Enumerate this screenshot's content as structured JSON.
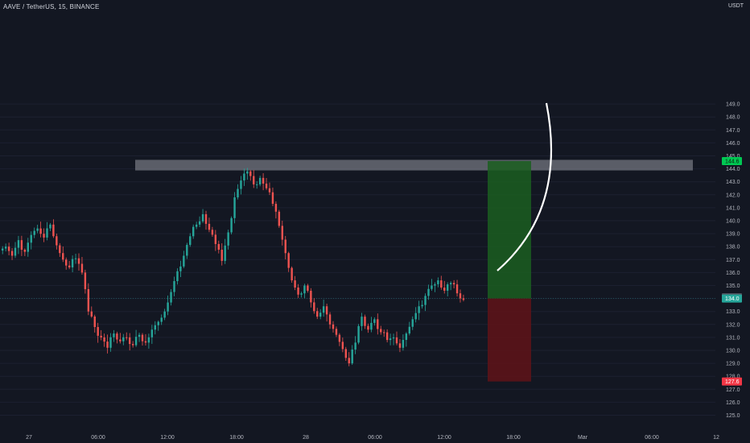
{
  "header": {
    "symbol_title": "AAVE / TetherUS, 15, BINANCE",
    "currency": "USDT"
  },
  "colors": {
    "background": "#131722",
    "up": "#26a69a",
    "down": "#ef5350",
    "target_zone": "#1b5e20",
    "stop_zone": "#5c1318",
    "resistance_zone": "#9598a1",
    "target_tag": "#00c853",
    "stop_tag": "#f23645",
    "current_tag": "#26a69a",
    "last_close_tag": "#4c525e"
  },
  "chart_data": {
    "type": "candlestick",
    "symbol": "AAVE / TetherUS",
    "interval": "15",
    "exchange": "BINANCE",
    "y_ticks": [
      125.0,
      126.0,
      127.0,
      128.0,
      129.0,
      130.0,
      131.0,
      132.0,
      133.0,
      134.0,
      135.0,
      136.0,
      137.0,
      138.0,
      139.0,
      140.0,
      141.0,
      142.0,
      143.0,
      144.0,
      145.0,
      146.0,
      147.0,
      148.0,
      149.0
    ],
    "y_tick_labels": [
      "125.0",
      "126.0",
      "127.0",
      "128.0",
      "129.0",
      "130.0",
      "131.0",
      "132.0",
      "133.0",
      "134.0",
      "135.0",
      "136.0",
      "137.0",
      "138.0",
      "139.0",
      "140.0",
      "141.0",
      "142.0",
      "143.0",
      "144.0",
      "145.0",
      "146.0",
      "147.0",
      "148.0",
      "149.0"
    ],
    "ylim": [
      124.3,
      150.2
    ],
    "x_tick_labels": [
      "27",
      "06:00",
      "12:00",
      "18:00",
      "28",
      "06:00",
      "12:00",
      "18:00",
      "Mar",
      "06:00",
      "12"
    ],
    "close_path": [
      138.0,
      137.3,
      138.5,
      137.6,
      138.9,
      139.4,
      138.7,
      139.7,
      138.1,
      137.0,
      136.4,
      137.1,
      136.0,
      133.0,
      131.8,
      131.0,
      130.2,
      131.3,
      130.7,
      131.0,
      130.4,
      131.2,
      130.6,
      131.6,
      132.2,
      133.0,
      134.5,
      136.1,
      137.3,
      138.8,
      139.7,
      140.5,
      139.3,
      138.2,
      136.9,
      139.1,
      141.8,
      143.1,
      143.8,
      142.8,
      143.3,
      142.5,
      141.3,
      139.6,
      137.5,
      135.4,
      134.3,
      135.0,
      133.7,
      132.6,
      133.4,
      132.0,
      131.2,
      130.1,
      129.0,
      130.6,
      132.6,
      131.6,
      132.4,
      131.4,
      130.8,
      131.0,
      130.2,
      131.3,
      132.4,
      133.4,
      134.2,
      135.0,
      135.4,
      134.6,
      135.2,
      134.4,
      133.9
    ],
    "last_price": 134.1,
    "current_price": 134.0,
    "target_price": 144.6,
    "stop_price": 127.6,
    "resistance_zone": [
      144.0,
      144.6
    ],
    "tags": {
      "target": "144.6",
      "last_close": "134.1",
      "current": "134.0",
      "stop": "127.6"
    }
  }
}
